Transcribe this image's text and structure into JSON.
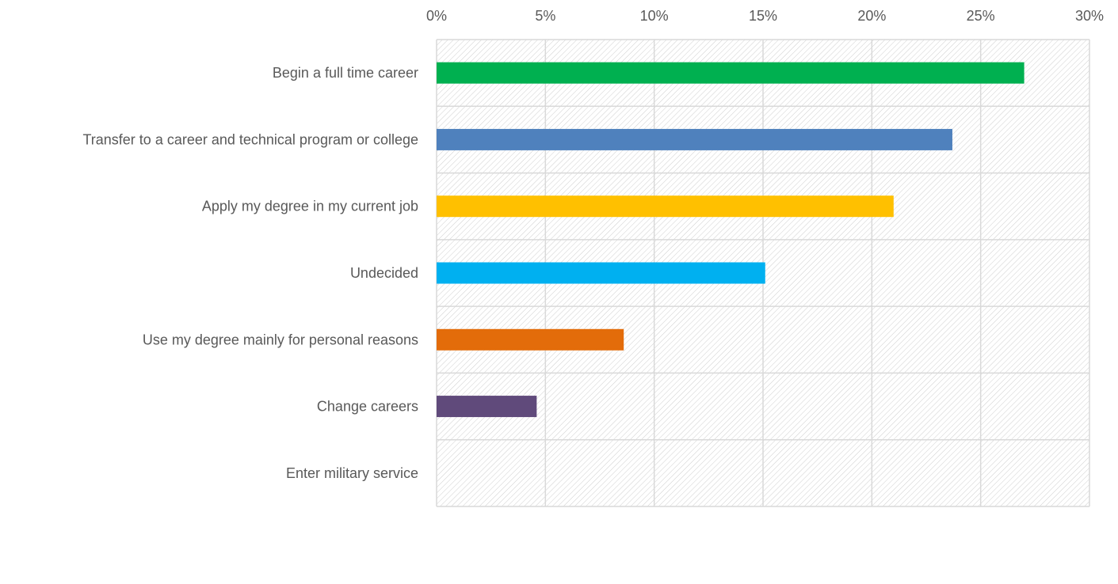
{
  "chart_data": {
    "type": "bar",
    "orientation": "horizontal",
    "categories": [
      "Begin a full time career",
      "Transfer to a career and technical program or college",
      "Apply my degree in my current job",
      "Undecided",
      "Use my degree mainly for personal reasons",
      "Change careers",
      "Enter military service"
    ],
    "values": [
      0.27,
      0.237,
      0.21,
      0.151,
      0.086,
      0.046,
      0.0
    ],
    "colors": [
      "#00B050",
      "#4F81BD",
      "#FFC000",
      "#00B0F0",
      "#E36C0A",
      "#604A7B",
      "#A5A5A5"
    ],
    "xlim": [
      0,
      0.3
    ],
    "x_ticks": [
      0,
      0.05,
      0.1,
      0.15,
      0.2,
      0.25,
      0.3
    ],
    "x_tick_labels": [
      "0%",
      "5%",
      "10%",
      "15%",
      "20%",
      "25%",
      "30%"
    ],
    "x_axis_position": "top",
    "grid": true,
    "plot_background": "hatched",
    "legend": "none"
  }
}
